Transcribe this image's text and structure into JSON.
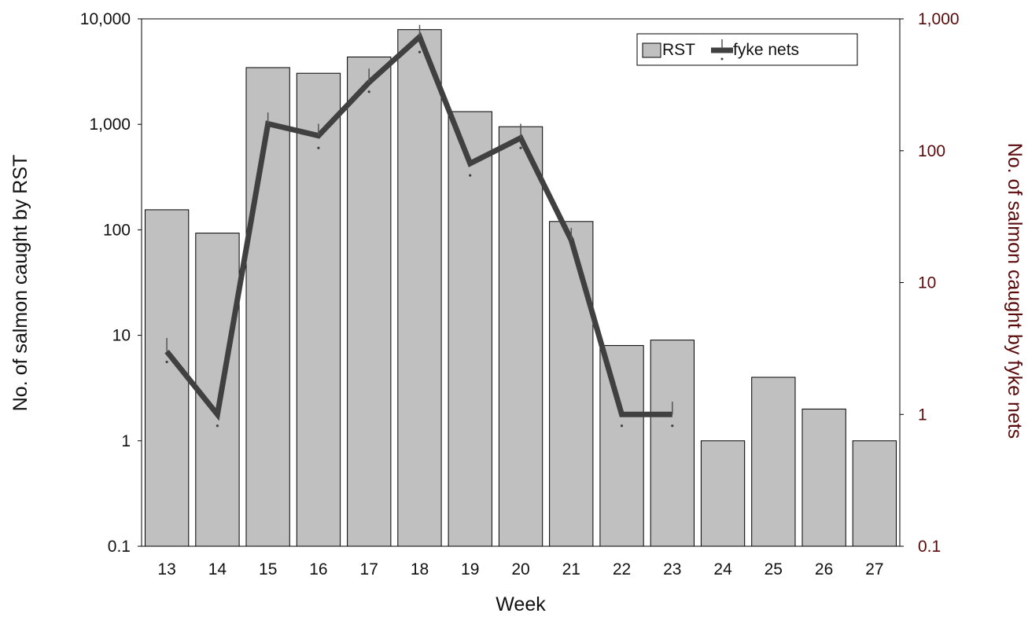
{
  "chart_data": {
    "type": "bar",
    "xlabel": "Week",
    "ylabel": "No. of salmon caught by RST",
    "y2label": "No. of salmon caught by fyke nets",
    "categories": [
      "13",
      "14",
      "15",
      "16",
      "17",
      "18",
      "19",
      "20",
      "21",
      "22",
      "23",
      "24",
      "25",
      "26",
      "27"
    ],
    "yscale": "log",
    "ylim": [
      0.1,
      10000
    ],
    "y2lim": [
      0.1,
      1000
    ],
    "yticks": [
      "0.1",
      "1",
      "10",
      "100",
      "1,000",
      "10,000"
    ],
    "y2ticks": [
      "0.1",
      "1",
      "10",
      "100",
      "1,000"
    ],
    "grid": false,
    "legend_position": "top-right",
    "series": [
      {
        "name": "RST",
        "kind": "bar",
        "axis": "left",
        "color": "#c0c0c0",
        "values": [
          155,
          93,
          3450,
          3050,
          4350,
          7900,
          1320,
          950,
          120,
          8,
          9,
          1,
          4,
          2,
          1
        ]
      },
      {
        "name": "fyke nets",
        "kind": "line",
        "axis": "right",
        "color": "#404040",
        "values": [
          3,
          1,
          160,
          130,
          330,
          730,
          80,
          125,
          21,
          1,
          1,
          null,
          null,
          null,
          null
        ],
        "error_upper": [
          3.8,
          null,
          195,
          160,
          420,
          900,
          null,
          160,
          26,
          null,
          1.25,
          null,
          null,
          null,
          null
        ],
        "error_lower": [
          2.5,
          0.82,
          null,
          105,
          280,
          560,
          65,
          105,
          null,
          0.82,
          0.82,
          null,
          null,
          null,
          null
        ]
      }
    ]
  }
}
